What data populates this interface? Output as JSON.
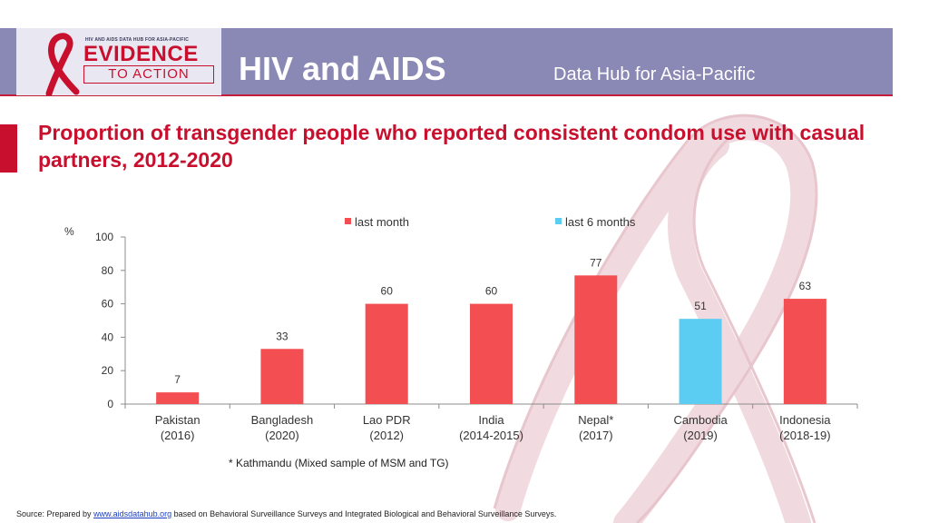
{
  "header": {
    "logo_top_text": "HIV AND AIDS DATA HUB FOR ASIA-PACIFIC",
    "logo_line1": "EVIDENCE",
    "logo_line2": "TO ACTION",
    "title": "HIV and AIDS",
    "subtitle": "Data Hub for Asia-Pacific"
  },
  "slide_title": "Proportion of transgender people who reported consistent condom use with casual partners, 2012-2020",
  "footnote": "*  Kathmandu (Mixed sample of MSM and TG)",
  "source": {
    "prefix": "Source: Prepared by ",
    "link": "www.aidsdatahub.org",
    "suffix": " based on Behavioral Surveillance Surveys and Integrated Biological and Behavioral Surveillance Surveys."
  },
  "colors": {
    "last_month": "#f34f52",
    "last_6_months": "#5ccdf2",
    "accent": "#c8102e",
    "header_band": "#8a88b4"
  },
  "chart_data": {
    "type": "bar",
    "title": "Proportion of transgender people who reported consistent condom use with casual partners, 2012-2020",
    "ylabel": "%",
    "xlabel": "",
    "ylim": [
      0,
      100
    ],
    "yticks": [
      0,
      20,
      40,
      60,
      80,
      100
    ],
    "legend": [
      {
        "name": "last month",
        "color": "#f34f52"
      },
      {
        "name": "last 6 months",
        "color": "#5ccdf2"
      }
    ],
    "legend_position": "top",
    "categories": [
      {
        "name": "Pakistan",
        "period": "(2016)"
      },
      {
        "name": "Bangladesh",
        "period": "(2020)"
      },
      {
        "name": "Lao PDR",
        "period": "(2012)"
      },
      {
        "name": "India",
        "period": "(2014-2015)"
      },
      {
        "name": "Nepal*",
        "period": "(2017)"
      },
      {
        "name": "Cambodia",
        "period": "(2019)"
      },
      {
        "name": "Indonesia",
        "period": "(2018-19)"
      }
    ],
    "values": [
      7,
      33,
      60,
      60,
      77,
      51,
      63
    ],
    "series_of_bar": [
      "last month",
      "last month",
      "last month",
      "last month",
      "last month",
      "last 6 months",
      "last month"
    ]
  }
}
